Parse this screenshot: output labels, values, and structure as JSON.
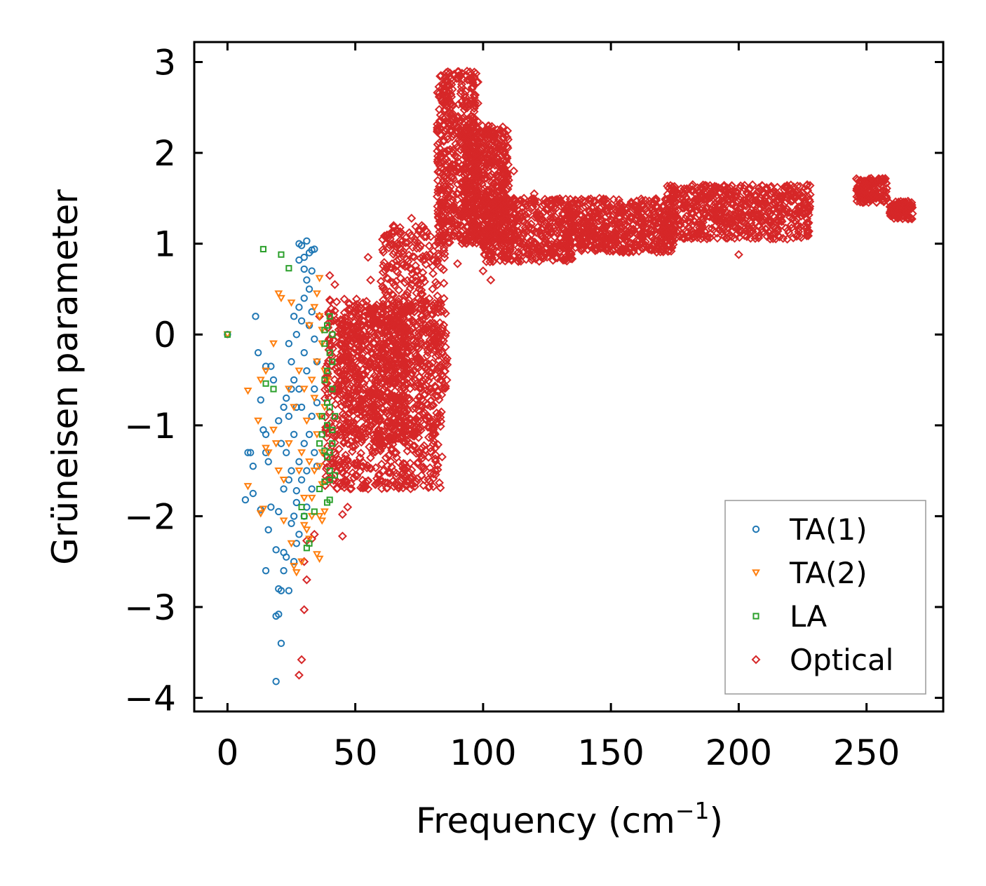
{
  "chart_data": {
    "type": "scatter",
    "title": "",
    "xlabel": "Frequency (cm",
    "xlabel_sup": "−1",
    "xlabel_tail": ")",
    "ylabel": "Grüneisen parameter",
    "xlim": [
      -13,
      280
    ],
    "ylim": [
      -4.15,
      3.22
    ],
    "x_ticks": [
      0,
      50,
      100,
      150,
      200,
      250
    ],
    "x_tick_labels": [
      "0",
      "50",
      "100",
      "150",
      "200",
      "250"
    ],
    "y_ticks": [
      -4,
      -3,
      -2,
      -1,
      0,
      1,
      2,
      3
    ],
    "y_tick_labels": [
      "−4",
      "−3",
      "−2",
      "−1",
      "0",
      "1",
      "2",
      "3"
    ],
    "grid": false,
    "legend_position": "bottom-right",
    "series": [
      {
        "name": "TA(1)",
        "marker": "circle",
        "color": "#1f77b4",
        "points": [
          [
            0,
            0
          ],
          [
            28,
            1.0
          ],
          [
            29,
            0.98
          ],
          [
            31,
            1.03
          ],
          [
            33,
            0.93
          ],
          [
            34,
            0.94
          ],
          [
            28,
            0.82
          ],
          [
            30,
            0.72
          ],
          [
            11,
            0.2
          ],
          [
            12,
            -0.2
          ],
          [
            15,
            -0.35
          ],
          [
            17,
            -0.35
          ],
          [
            18,
            -0.5
          ],
          [
            13,
            -0.72
          ],
          [
            14,
            -1.05
          ],
          [
            15,
            -1.1
          ],
          [
            9,
            -1.3
          ],
          [
            8,
            -1.3
          ],
          [
            10,
            -1.45
          ],
          [
            7,
            -1.82
          ],
          [
            10,
            -1.75
          ],
          [
            13,
            -1.93
          ],
          [
            15,
            -1.3
          ],
          [
            16,
            -1.4
          ],
          [
            17,
            -1.9
          ],
          [
            16,
            -2.15
          ],
          [
            20,
            -1.95
          ],
          [
            22,
            -2.4
          ],
          [
            19,
            -2.37
          ],
          [
            20,
            -2.8
          ],
          [
            21,
            -2.82
          ],
          [
            19,
            -3.1
          ],
          [
            20,
            -3.08
          ],
          [
            21,
            -3.4
          ],
          [
            19,
            -3.82
          ],
          [
            15,
            -2.6
          ],
          [
            22,
            -2.6
          ],
          [
            23,
            -2.45
          ],
          [
            24,
            -2.82
          ],
          [
            25,
            -2.08
          ],
          [
            26,
            -2.0
          ],
          [
            27,
            -1.85
          ],
          [
            22,
            -1.7
          ],
          [
            24,
            -1.6
          ],
          [
            25,
            -1.5
          ],
          [
            27,
            -1.72
          ],
          [
            23,
            -1.3
          ],
          [
            21,
            -1.2
          ],
          [
            20,
            -0.95
          ],
          [
            22,
            -0.8
          ],
          [
            23,
            -0.7
          ],
          [
            24,
            -0.9
          ],
          [
            25,
            -0.6
          ],
          [
            26,
            -0.5
          ],
          [
            25,
            -0.3
          ],
          [
            26,
            0.2
          ],
          [
            24,
            -0.1
          ],
          [
            27,
            0.0
          ],
          [
            26,
            -1.1
          ],
          [
            28,
            -1.4
          ],
          [
            29,
            -1.6
          ],
          [
            30,
            -0.2
          ],
          [
            28,
            0.3
          ],
          [
            32,
            0.5
          ],
          [
            33,
            0.7
          ],
          [
            31,
            -0.4
          ],
          [
            29,
            -0.8
          ],
          [
            30,
            -1.2
          ],
          [
            31,
            -1.5
          ],
          [
            32,
            -1.1
          ],
          [
            33,
            -0.9
          ],
          [
            34,
            -0.6
          ],
          [
            35,
            -0.3
          ],
          [
            34,
            -1.3
          ],
          [
            35,
            -1.45
          ],
          [
            32,
            0.1
          ],
          [
            30,
            0.4
          ],
          [
            29,
            0.15
          ],
          [
            26,
            -2.5
          ],
          [
            27,
            -2.3
          ],
          [
            28,
            -2.2
          ],
          [
            30,
            -2.0
          ],
          [
            31,
            -1.9
          ],
          [
            33,
            -1.7
          ],
          [
            28,
            -0.6
          ],
          [
            27,
            -0.8
          ],
          [
            31,
            0.6
          ],
          [
            33,
            0.25
          ],
          [
            34,
            -0.05
          ],
          [
            35,
            -0.75
          ],
          [
            30,
            0.85
          ],
          [
            32,
            0.9
          ]
        ]
      },
      {
        "name": "TA(2)",
        "marker": "triangle",
        "color": "#ff7f0e",
        "points": [
          [
            0,
            0
          ],
          [
            21,
            0.4
          ],
          [
            20,
            0.45
          ],
          [
            25,
            0.35
          ],
          [
            18,
            -0.1
          ],
          [
            15,
            -0.4
          ],
          [
            13,
            -0.5
          ],
          [
            8,
            -0.62
          ],
          [
            12,
            -0.95
          ],
          [
            15,
            -1.25
          ],
          [
            16,
            -1.3
          ],
          [
            18,
            -1.05
          ],
          [
            19,
            -1.2
          ],
          [
            8,
            -1.67
          ],
          [
            13,
            -1.97
          ],
          [
            14,
            -1.92
          ],
          [
            20,
            -1.5
          ],
          [
            22,
            -1.6
          ],
          [
            24,
            -1.2
          ],
          [
            26,
            -2.55
          ],
          [
            27,
            -2.62
          ],
          [
            29,
            -2.5
          ],
          [
            30,
            -2.1
          ],
          [
            32,
            -2.25
          ],
          [
            35,
            -2.42
          ],
          [
            36,
            -2.47
          ],
          [
            37,
            -2.05
          ],
          [
            38,
            -1.95
          ],
          [
            34,
            -1.5
          ],
          [
            36,
            -1.45
          ],
          [
            37,
            -1.65
          ],
          [
            33,
            -1.8
          ],
          [
            35,
            -1.1
          ],
          [
            37,
            -1.3
          ],
          [
            36,
            -0.9
          ],
          [
            34,
            -0.7
          ],
          [
            33,
            -0.5
          ],
          [
            35,
            -0.3
          ],
          [
            37,
            -0.1
          ],
          [
            36,
            0.2
          ],
          [
            35,
            0.45
          ],
          [
            36,
            0.62
          ],
          [
            34,
            0.3
          ],
          [
            32,
            0.1
          ],
          [
            30,
            -0.6
          ],
          [
            31,
            -0.95
          ],
          [
            29,
            -1.3
          ],
          [
            32,
            -1.4
          ],
          [
            33,
            -2.0
          ],
          [
            31,
            -2.15
          ],
          [
            30,
            -1.8
          ],
          [
            24,
            -0.6
          ],
          [
            26,
            -0.8
          ],
          [
            28,
            -0.4
          ],
          [
            38,
            -0.8
          ],
          [
            38,
            -0.4
          ],
          [
            37,
            0.05
          ],
          [
            39,
            -0.5
          ],
          [
            22,
            -2.05
          ],
          [
            25,
            -2.3
          ],
          [
            28,
            -1.5
          ],
          [
            36,
            -2.0
          ]
        ]
      },
      {
        "name": "LA",
        "marker": "square",
        "color": "#2ca02c",
        "points": [
          [
            0,
            0
          ],
          [
            14,
            0.94
          ],
          [
            21,
            0.88
          ],
          [
            24,
            0.73
          ],
          [
            15,
            -0.54
          ],
          [
            18,
            -0.6
          ],
          [
            29,
            -1.9
          ],
          [
            30,
            -2.0
          ],
          [
            31,
            -2.35
          ],
          [
            32,
            -2.3
          ],
          [
            34,
            -1.95
          ],
          [
            36,
            -1.7
          ],
          [
            38,
            -1.62
          ],
          [
            40,
            -1.6
          ],
          [
            42,
            -1.55
          ],
          [
            39,
            -1.35
          ],
          [
            40,
            -1.3
          ],
          [
            41,
            -1.2
          ],
          [
            39,
            -1.0
          ],
          [
            40,
            -0.8
          ],
          [
            41,
            -0.6
          ],
          [
            39,
            -0.4
          ],
          [
            40,
            -0.2
          ],
          [
            41,
            0.0
          ],
          [
            39,
            0.1
          ],
          [
            40,
            0.2
          ],
          [
            38,
            -0.1
          ],
          [
            38,
            -0.5
          ],
          [
            39,
            -0.75
          ],
          [
            37,
            -1.1
          ],
          [
            38,
            -1.28
          ],
          [
            39,
            -1.85
          ],
          [
            40,
            -1.82
          ],
          [
            41,
            -1.05
          ],
          [
            42,
            -0.9
          ],
          [
            41,
            -0.3
          ],
          [
            40,
            -1.5
          ],
          [
            37,
            -0.9
          ],
          [
            36,
            -1.2
          ],
          [
            38,
            0.05
          ]
        ]
      },
      {
        "name": "Optical",
        "marker": "diamond",
        "color": "#d62728",
        "regions": [
          {
            "x_range": [
              38,
              84
            ],
            "y_range": [
              -1.7,
              0.4
            ],
            "count": 900
          },
          {
            "x_range": [
              44,
              70
            ],
            "y_range": [
              -1.2,
              0.3
            ],
            "count": 400
          },
          {
            "x_range": [
              60,
              86
            ],
            "y_range": [
              -0.6,
              1.2
            ],
            "count": 350
          },
          {
            "x_range": [
              82,
              98
            ],
            "y_range": [
              1.0,
              2.9
            ],
            "count": 500
          },
          {
            "x_range": [
              93,
              110
            ],
            "y_range": [
              1.0,
              2.3
            ],
            "count": 500
          },
          {
            "x_range": [
              100,
              135
            ],
            "y_range": [
              0.8,
              1.5
            ],
            "count": 450
          },
          {
            "x_range": [
              133,
              175
            ],
            "y_range": [
              0.9,
              1.5
            ],
            "count": 550
          },
          {
            "x_range": [
              172,
              228
            ],
            "y_range": [
              1.05,
              1.65
            ],
            "count": 650
          },
          {
            "x_range": [
              246,
              258
            ],
            "y_range": [
              1.45,
              1.72
            ],
            "count": 140
          },
          {
            "x_range": [
              259,
              268
            ],
            "y_range": [
              1.27,
              1.47
            ],
            "count": 90
          }
        ],
        "points": [
          [
            87,
            2.88
          ],
          [
            86,
            2.8
          ],
          [
            88,
            2.7
          ],
          [
            96,
            2.3
          ],
          [
            112,
            1.8
          ],
          [
            110,
            1.7
          ],
          [
            116,
            1.5
          ],
          [
            120,
            1.55
          ],
          [
            122,
            1.28
          ],
          [
            107,
            0.95
          ],
          [
            110,
            0.9
          ],
          [
            100,
            0.7
          ],
          [
            103,
            0.6
          ],
          [
            90,
            0.78
          ],
          [
            180,
            1.07
          ],
          [
            200,
            0.88
          ],
          [
            162,
            0.95
          ],
          [
            108,
            0.85
          ],
          [
            45,
            -1.98
          ],
          [
            47,
            -1.9
          ],
          [
            45,
            -2.22
          ],
          [
            34,
            -2.2
          ],
          [
            33,
            -2.25
          ],
          [
            31,
            -2.27
          ],
          [
            30,
            -2.5
          ],
          [
            31,
            -2.7
          ],
          [
            30,
            -3.03
          ],
          [
            29,
            -3.58
          ],
          [
            28,
            -3.75
          ],
          [
            48,
            -1.7
          ],
          [
            46,
            -1.6
          ],
          [
            50,
            -1.55
          ],
          [
            55,
            -1.7
          ],
          [
            58,
            -1.65
          ],
          [
            61,
            -1.5
          ],
          [
            66,
            -1.3
          ],
          [
            70,
            -1.1
          ],
          [
            73,
            -1.12
          ],
          [
            58,
            0.3
          ],
          [
            55,
            0.85
          ],
          [
            56,
            0.6
          ],
          [
            62,
            1.07
          ],
          [
            65,
            1.2
          ],
          [
            72,
            1.28
          ],
          [
            70,
            1.07
          ],
          [
            74,
            0.95
          ],
          [
            76,
            1.2
          ],
          [
            78,
            0.85
          ],
          [
            82,
            0.8
          ],
          [
            84,
            1.2
          ],
          [
            75,
            0.5
          ],
          [
            68,
            0.9
          ],
          [
            66,
            0.7
          ],
          [
            40,
            0.65
          ],
          [
            42,
            0.55
          ],
          [
            36,
            0.2
          ],
          [
            50,
            -0.05
          ],
          [
            53,
            0.15
          ]
        ]
      }
    ]
  }
}
